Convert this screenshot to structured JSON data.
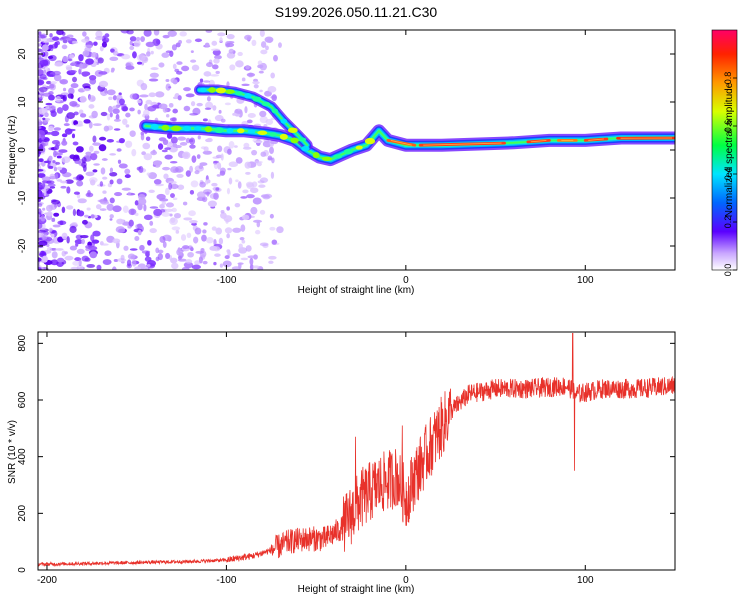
{
  "title": "S199.2026.050.11.21.C30",
  "chart_data": [
    {
      "type": "heatmap",
      "name": "spectrogram",
      "xlabel": "Height of straight line (km)",
      "ylabel": "Frequency (Hz)",
      "xlim": [
        -205,
        150
      ],
      "ylim": [
        -25,
        25
      ],
      "xticks": [
        -200,
        -100,
        0,
        100
      ],
      "yticks": [
        -20,
        -10,
        0,
        10,
        20
      ],
      "xtick_labels": [
        "-200",
        "-100",
        "0",
        "100"
      ],
      "ytick_labels": [
        "-20",
        "-10",
        "0",
        "10",
        "20"
      ],
      "ridge": [
        {
          "x": -145,
          "y": 5
        },
        {
          "x": -130,
          "y": 4.5
        },
        {
          "x": -115,
          "y": 4.5
        },
        {
          "x": -100,
          "y": 4
        },
        {
          "x": -90,
          "y": 4
        },
        {
          "x": -78,
          "y": 3.5
        },
        {
          "x": -70,
          "y": 3
        },
        {
          "x": -62,
          "y": 2
        },
        {
          "x": -55,
          "y": 0
        },
        {
          "x": -48,
          "y": -1.5
        },
        {
          "x": -42,
          "y": -2
        },
        {
          "x": -36,
          "y": -1
        },
        {
          "x": -30,
          "y": 0
        },
        {
          "x": -22,
          "y": 1
        },
        {
          "x": -15,
          "y": 4
        },
        {
          "x": -10,
          "y": 2
        },
        {
          "x": 0,
          "y": 1
        },
        {
          "x": 20,
          "y": 1
        },
        {
          "x": 60,
          "y": 1.5
        },
        {
          "x": 80,
          "y": 2
        },
        {
          "x": 100,
          "y": 2
        },
        {
          "x": 120,
          "y": 2.5
        },
        {
          "x": 150,
          "y": 2.5
        }
      ],
      "upper_branch": [
        {
          "x": -115,
          "y": 12.5
        },
        {
          "x": -105,
          "y": 12.5
        },
        {
          "x": -95,
          "y": 12
        },
        {
          "x": -85,
          "y": 11
        },
        {
          "x": -75,
          "y": 9
        },
        {
          "x": -68,
          "y": 6
        },
        {
          "x": -60,
          "y": 3
        },
        {
          "x": -55,
          "y": 1
        }
      ],
      "colorbar": {
        "label": "Normalized spectral amplitude",
        "range": [
          0,
          1
        ],
        "ticks": [
          0.0,
          0.2,
          0.4,
          0.6,
          0.8
        ],
        "tick_labels": [
          "0.0",
          "0.2",
          "0.4",
          "0.6",
          "0.8"
        ]
      }
    },
    {
      "type": "line",
      "name": "snr",
      "xlabel": "Height of straight line (km)",
      "ylabel": "SNR (10 * v/v)",
      "xlim": [
        -205,
        150
      ],
      "ylim": [
        0,
        840
      ],
      "xticks": [
        -200,
        -100,
        0,
        100
      ],
      "yticks": [
        0,
        200,
        400,
        600,
        800
      ],
      "xtick_labels": [
        "-200",
        "-100",
        "0",
        "100"
      ],
      "ytick_labels": [
        "0",
        "200",
        "400",
        "600",
        "800"
      ],
      "color": "#e8312a",
      "trend": [
        {
          "x": -205,
          "y": 20
        },
        {
          "x": -160,
          "y": 25
        },
        {
          "x": -120,
          "y": 30
        },
        {
          "x": -100,
          "y": 35
        },
        {
          "x": -85,
          "y": 50
        },
        {
          "x": -75,
          "y": 70
        },
        {
          "x": -65,
          "y": 100
        },
        {
          "x": -55,
          "y": 110
        },
        {
          "x": -45,
          "y": 110
        },
        {
          "x": -35,
          "y": 150
        },
        {
          "x": -25,
          "y": 250
        },
        {
          "x": -15,
          "y": 300
        },
        {
          "x": -5,
          "y": 330
        },
        {
          "x": 0,
          "y": 250
        },
        {
          "x": 5,
          "y": 330
        },
        {
          "x": 15,
          "y": 450
        },
        {
          "x": 25,
          "y": 560
        },
        {
          "x": 35,
          "y": 620
        },
        {
          "x": 50,
          "y": 640
        },
        {
          "x": 70,
          "y": 640
        },
        {
          "x": 90,
          "y": 650
        },
        {
          "x": 95,
          "y": 620
        },
        {
          "x": 110,
          "y": 640
        },
        {
          "x": 130,
          "y": 640
        },
        {
          "x": 150,
          "y": 650
        }
      ],
      "spikes": [
        {
          "x": -28,
          "y": 470
        },
        {
          "x": -2,
          "y": 510
        },
        {
          "x": 2,
          "y": 180
        },
        {
          "x": 93,
          "y": 835
        },
        {
          "x": 94,
          "y": 350
        }
      ]
    }
  ]
}
